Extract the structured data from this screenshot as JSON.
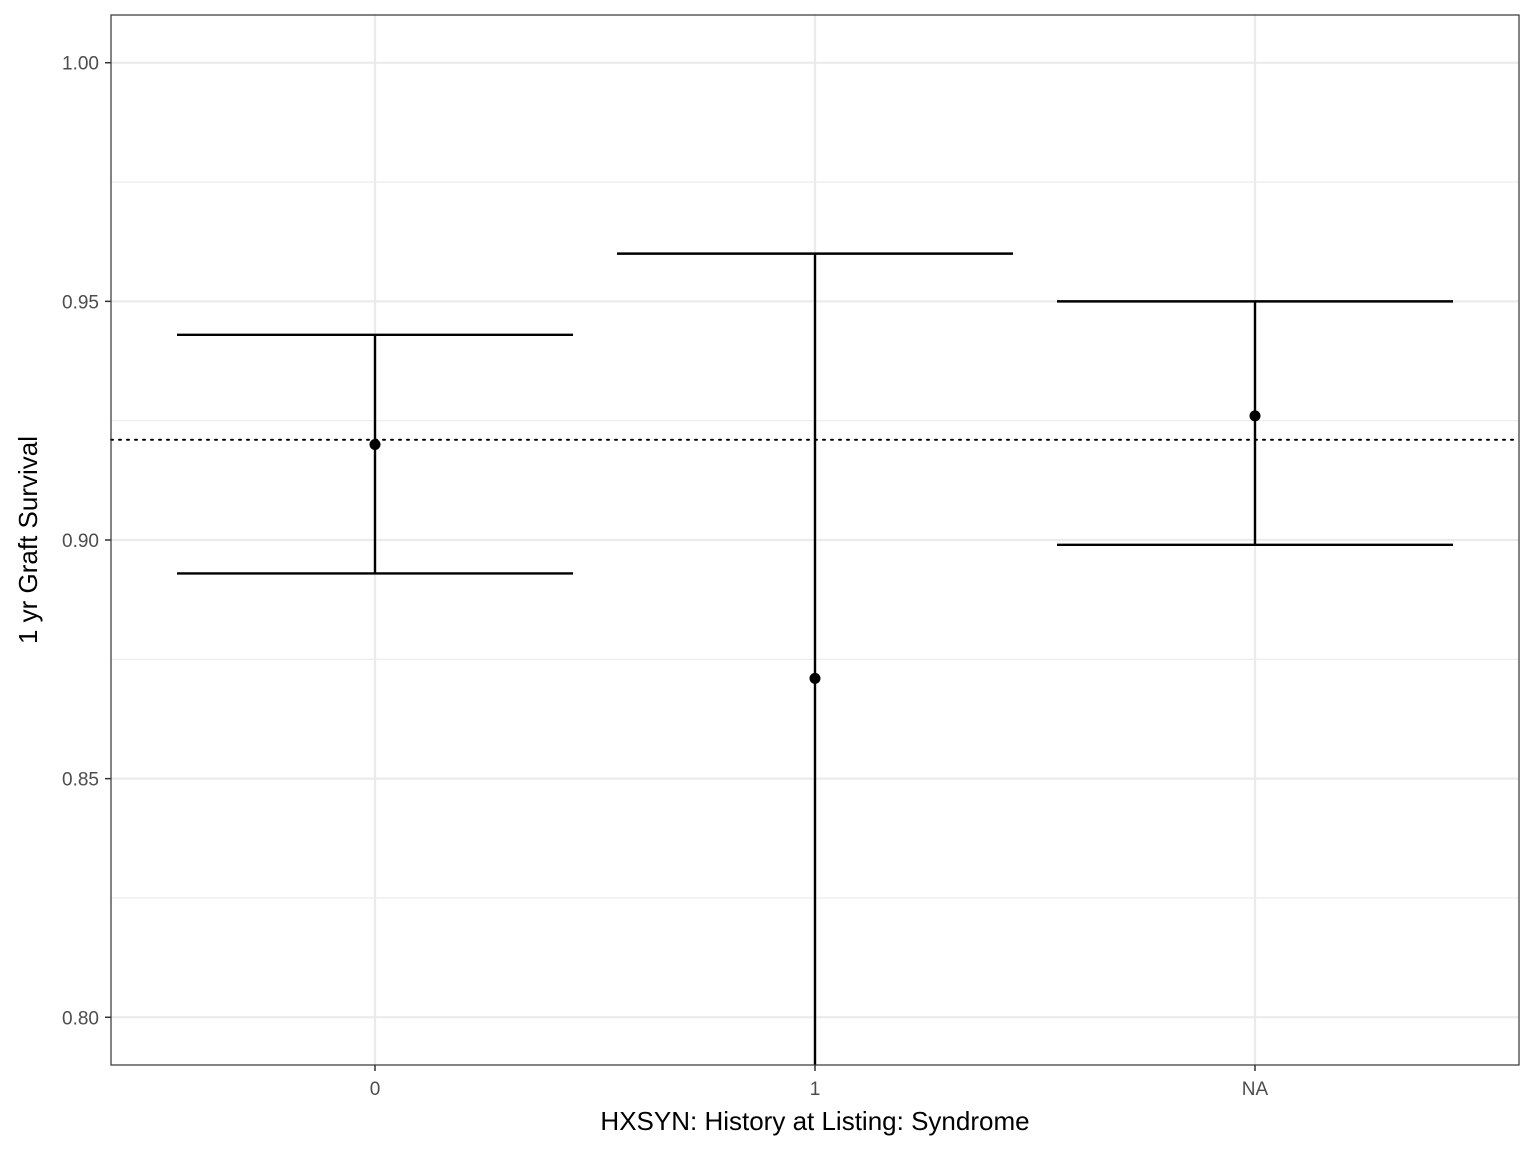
{
  "chart_data": {
    "type": "errorbar",
    "xlabel": "HXSYN: History at Listing: Syndrome",
    "ylabel": "1 yr Graft Survival",
    "categories": [
      "0",
      "1",
      "NA"
    ],
    "points": [
      {
        "category": "0",
        "estimate": 0.92,
        "lower": 0.893,
        "upper": 0.943
      },
      {
        "category": "1",
        "estimate": 0.871,
        "lower": 0.79,
        "upper": 0.96
      },
      {
        "category": "NA",
        "estimate": 0.926,
        "lower": 0.899,
        "upper": 0.95
      }
    ],
    "reference_line": {
      "value": 0.921,
      "style": "dotted"
    },
    "ylim": [
      0.79,
      1.01
    ],
    "yticks": [
      0.8,
      0.85,
      0.9,
      0.95,
      1.0
    ],
    "ytick_labels": [
      "0.80",
      "0.85",
      "0.90",
      "0.95",
      "1.00"
    ],
    "grid": true,
    "legend": "none",
    "colors": {
      "marks": "#000000",
      "grid": "#ebebeb",
      "border": "#333333"
    }
  }
}
